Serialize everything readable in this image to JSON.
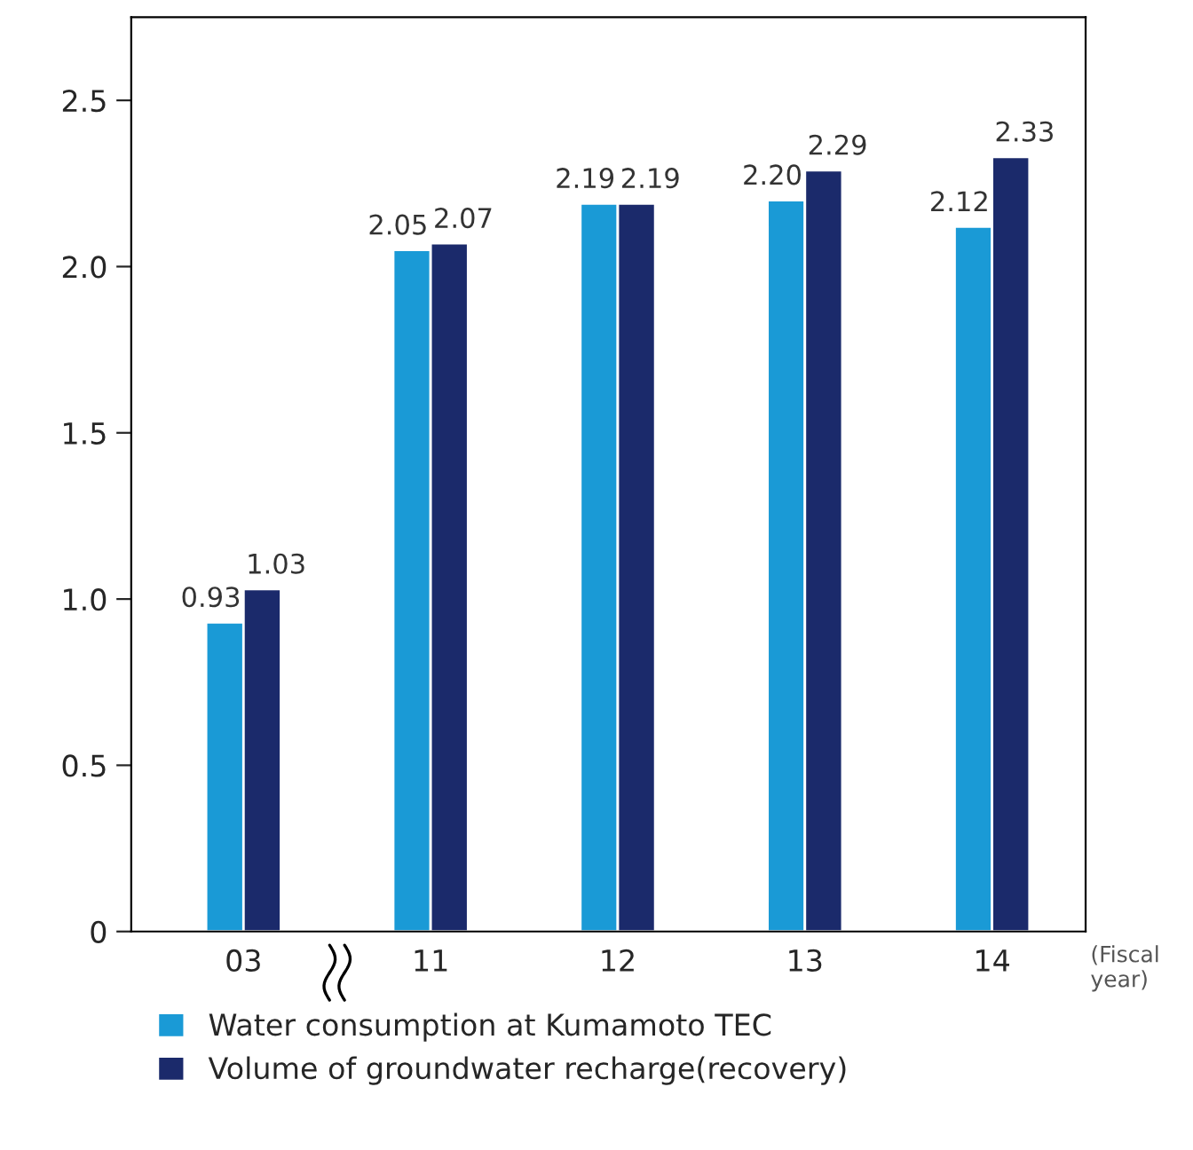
{
  "chart_data": {
    "type": "bar",
    "categories": [
      "03",
      "11",
      "12",
      "13",
      "14"
    ],
    "xlabel": "(Fiscal year)",
    "series": [
      {
        "name": "Water consumption at Kumamoto TEC",
        "color": "#1a9ad6",
        "values": [
          0.93,
          2.05,
          2.19,
          2.2,
          2.12
        ],
        "value_labels": [
          "0.93",
          "2.05",
          "2.19",
          "2.20",
          "2.12"
        ]
      },
      {
        "name": "Volume of groundwater recharge(recovery)",
        "color": "#1b2a6b",
        "values": [
          1.03,
          2.07,
          2.19,
          2.29,
          2.33
        ],
        "value_labels": [
          "1.03",
          "2.07",
          "2.19",
          "2.29",
          "2.33"
        ]
      }
    ],
    "ylim": [
      0,
      2.75
    ],
    "yticks": [
      0,
      {
        "value": 0.5,
        "label": "0.5"
      },
      {
        "value": 1,
        "label": "1.0"
      },
      {
        "value": 1.5,
        "label": "1.5"
      },
      {
        "value": 2,
        "label": "2.0"
      },
      {
        "value": 2.5,
        "label": "2.5"
      }
    ],
    "legend": "bottom",
    "grid": false
  }
}
